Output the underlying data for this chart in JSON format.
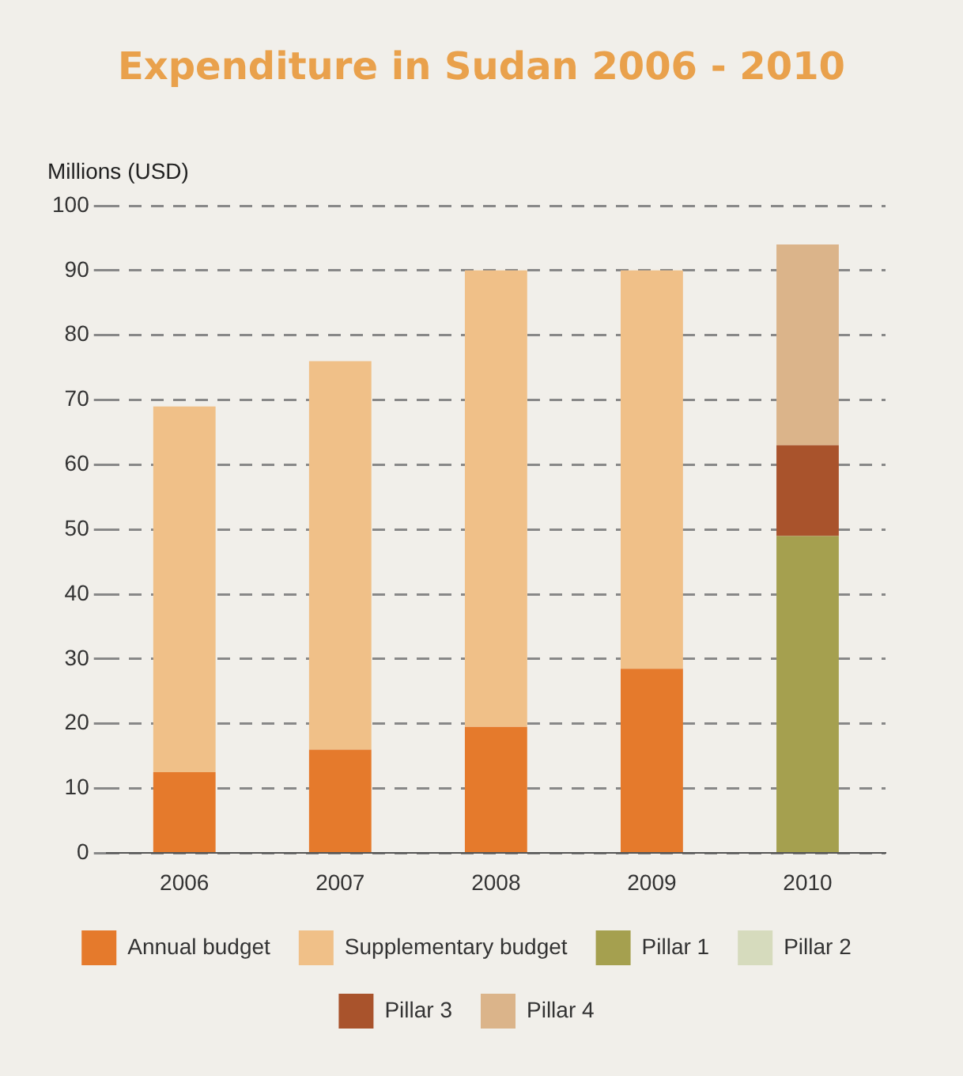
{
  "chart_data": {
    "type": "bar",
    "title": "Expenditure in Sudan 2006 - 2010",
    "ylabel": "Millions (USD)",
    "categories": [
      "2006",
      "2007",
      "2008",
      "2009",
      "2010"
    ],
    "series": [
      {
        "name": "Annual budget",
        "color": "#e57a2c",
        "values": [
          12.5,
          16,
          19.5,
          28.5,
          null
        ]
      },
      {
        "name": "Supplementary budget",
        "color": "#f0c088",
        "values": [
          56.5,
          60,
          70.5,
          61.5,
          null
        ]
      },
      {
        "name": "Pillar 1",
        "color": "#a5a04f",
        "values": [
          null,
          null,
          null,
          null,
          49
        ]
      },
      {
        "name": "Pillar 2",
        "color": "#d6dbbd",
        "values": [
          null,
          null,
          null,
          null,
          null
        ]
      },
      {
        "name": "Pillar 3",
        "color": "#a9532c",
        "values": [
          null,
          null,
          null,
          null,
          14
        ]
      },
      {
        "name": "Pillar 4",
        "color": "#dbb48a",
        "values": [
          null,
          null,
          null,
          null,
          31
        ]
      }
    ],
    "stacked": true,
    "ylim": [
      0,
      100
    ],
    "yticks": [
      0,
      10,
      20,
      30,
      40,
      50,
      60,
      70,
      80,
      90,
      100
    ],
    "grid": "y",
    "legend": "bottom"
  }
}
